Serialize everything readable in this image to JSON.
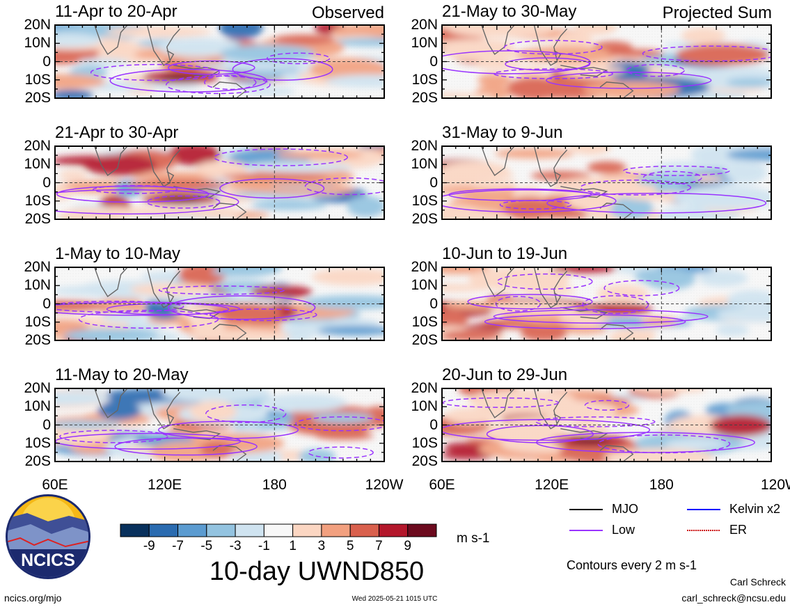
{
  "panels": [
    {
      "title": "11-Apr to 20-Apr",
      "tag": "Observed"
    },
    {
      "title": "21-May to 30-May",
      "tag": "Projected Sum"
    },
    {
      "title": "21-Apr to 30-Apr",
      "tag": ""
    },
    {
      "title": "31-May to 9-Jun",
      "tag": ""
    },
    {
      "title": "1-May to 10-May",
      "tag": ""
    },
    {
      "title": "10-Jun to 19-Jun",
      "tag": ""
    },
    {
      "title": "11-May to 20-May",
      "tag": ""
    },
    {
      "title": "20-Jun to 29-Jun",
      "tag": ""
    }
  ],
  "lat_labels": [
    "20N",
    "10N",
    "0",
    "10S",
    "20S"
  ],
  "lon_labels": [
    "60E",
    "120E",
    "180",
    "120W"
  ],
  "colorbar": {
    "ticks": [
      "-9",
      "-7",
      "-5",
      "-3",
      "-1",
      "1",
      "3",
      "5",
      "7",
      "9"
    ],
    "colors": [
      "#08305c",
      "#2a6bb0",
      "#5b9bd0",
      "#93c3e0",
      "#cfe3f0",
      "#f7f7f7",
      "#fbd6c2",
      "#f2a07f",
      "#d9604d",
      "#b3172b",
      "#6c0a1e"
    ],
    "unit": "m s-1",
    "title": "10-day UWND850"
  },
  "legend": {
    "items": [
      {
        "label": "MJO",
        "color": "#000000"
      },
      {
        "label": "Kelvin x2",
        "color": "#0000ff"
      },
      {
        "label": "Low",
        "color": "#9933ff"
      },
      {
        "label": "ER",
        "color": "#cc0000"
      }
    ],
    "contours_note": "Contours every 2 m s-1"
  },
  "logo": {
    "text": "NCICS"
  },
  "footer": {
    "url": "ncics.org/mjo",
    "timestamp": "Wed 2025-05-21 1015 UTC",
    "author": "Carl Schreck",
    "email": "carl_schreck@ncsu.edu"
  }
}
